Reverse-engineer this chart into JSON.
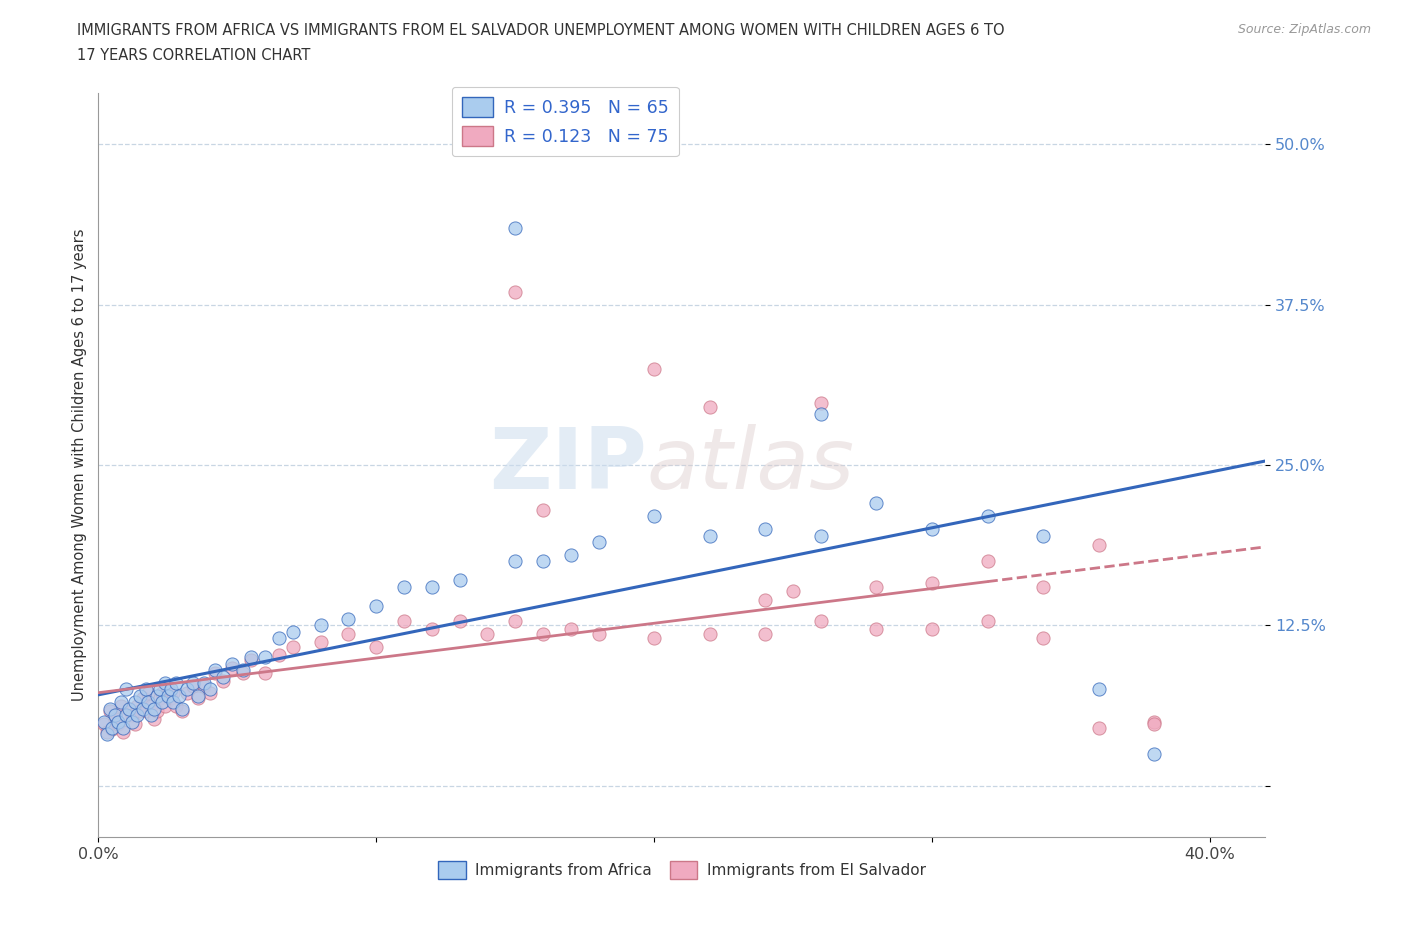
{
  "title_line1": "IMMIGRANTS FROM AFRICA VS IMMIGRANTS FROM EL SALVADOR UNEMPLOYMENT AMONG WOMEN WITH CHILDREN AGES 6 TO",
  "title_line2": "17 YEARS CORRELATION CHART",
  "source": "Source: ZipAtlas.com",
  "ylabel": "Unemployment Among Women with Children Ages 6 to 17 years",
  "xlim": [
    0.0,
    0.42
  ],
  "ylim": [
    -0.04,
    0.54
  ],
  "yticks": [
    0.0,
    0.125,
    0.25,
    0.375,
    0.5
  ],
  "ytick_labels": [
    "",
    "12.5%",
    "25.0%",
    "37.5%",
    "50.0%"
  ],
  "xticks": [
    0.0,
    0.1,
    0.2,
    0.3,
    0.4
  ],
  "xtick_labels": [
    "0.0%",
    "",
    "",
    "",
    "40.0%"
  ],
  "r_africa": 0.395,
  "n_africa": 65,
  "r_el_salvador": 0.123,
  "n_el_salvador": 75,
  "color_africa": "#aaccee",
  "color_el_salvador": "#f0aac0",
  "trend_africa_color": "#3366bb",
  "trend_el_salvador_color": "#cc7788",
  "watermark_zip": "ZIP",
  "watermark_atlas": "atlas",
  "africa_x": [
    0.002,
    0.003,
    0.004,
    0.005,
    0.006,
    0.007,
    0.008,
    0.009,
    0.01,
    0.01,
    0.011,
    0.012,
    0.013,
    0.014,
    0.015,
    0.016,
    0.017,
    0.018,
    0.019,
    0.02,
    0.021,
    0.022,
    0.023,
    0.024,
    0.025,
    0.026,
    0.027,
    0.028,
    0.029,
    0.03,
    0.032,
    0.034,
    0.036,
    0.038,
    0.04,
    0.042,
    0.045,
    0.048,
    0.052,
    0.055,
    0.06,
    0.065,
    0.07,
    0.08,
    0.09,
    0.1,
    0.11,
    0.12,
    0.13,
    0.15,
    0.16,
    0.17,
    0.18,
    0.2,
    0.22,
    0.24,
    0.26,
    0.28,
    0.3,
    0.32,
    0.34,
    0.36,
    0.38,
    0.15,
    0.26
  ],
  "africa_y": [
    0.05,
    0.04,
    0.06,
    0.045,
    0.055,
    0.05,
    0.065,
    0.045,
    0.055,
    0.075,
    0.06,
    0.05,
    0.065,
    0.055,
    0.07,
    0.06,
    0.075,
    0.065,
    0.055,
    0.06,
    0.07,
    0.075,
    0.065,
    0.08,
    0.07,
    0.075,
    0.065,
    0.08,
    0.07,
    0.06,
    0.075,
    0.08,
    0.07,
    0.08,
    0.075,
    0.09,
    0.085,
    0.095,
    0.09,
    0.1,
    0.1,
    0.115,
    0.12,
    0.125,
    0.13,
    0.14,
    0.155,
    0.155,
    0.16,
    0.175,
    0.175,
    0.18,
    0.19,
    0.21,
    0.195,
    0.2,
    0.195,
    0.22,
    0.2,
    0.21,
    0.195,
    0.075,
    0.025,
    0.435,
    0.29
  ],
  "el_salvador_x": [
    0.002,
    0.003,
    0.004,
    0.005,
    0.006,
    0.007,
    0.008,
    0.009,
    0.01,
    0.011,
    0.012,
    0.013,
    0.014,
    0.015,
    0.016,
    0.017,
    0.018,
    0.019,
    0.02,
    0.021,
    0.022,
    0.023,
    0.024,
    0.025,
    0.026,
    0.027,
    0.028,
    0.03,
    0.032,
    0.034,
    0.036,
    0.038,
    0.04,
    0.042,
    0.045,
    0.048,
    0.052,
    0.055,
    0.06,
    0.065,
    0.07,
    0.08,
    0.09,
    0.1,
    0.11,
    0.12,
    0.13,
    0.14,
    0.15,
    0.16,
    0.17,
    0.18,
    0.2,
    0.22,
    0.24,
    0.26,
    0.28,
    0.3,
    0.32,
    0.34,
    0.36,
    0.38,
    0.16,
    0.2,
    0.22,
    0.24,
    0.26,
    0.28,
    0.3,
    0.32,
    0.34,
    0.36,
    0.38,
    0.15,
    0.25
  ],
  "el_salvador_y": [
    0.048,
    0.042,
    0.058,
    0.044,
    0.052,
    0.048,
    0.062,
    0.042,
    0.055,
    0.06,
    0.055,
    0.048,
    0.062,
    0.058,
    0.068,
    0.058,
    0.072,
    0.062,
    0.052,
    0.058,
    0.068,
    0.072,
    0.062,
    0.075,
    0.068,
    0.072,
    0.062,
    0.058,
    0.072,
    0.078,
    0.068,
    0.078,
    0.072,
    0.088,
    0.082,
    0.092,
    0.088,
    0.098,
    0.088,
    0.102,
    0.108,
    0.112,
    0.118,
    0.108,
    0.128,
    0.122,
    0.128,
    0.118,
    0.128,
    0.118,
    0.122,
    0.118,
    0.115,
    0.118,
    0.118,
    0.128,
    0.122,
    0.122,
    0.128,
    0.115,
    0.045,
    0.05,
    0.215,
    0.325,
    0.295,
    0.145,
    0.298,
    0.155,
    0.158,
    0.175,
    0.155,
    0.188,
    0.048,
    0.385,
    0.152
  ]
}
